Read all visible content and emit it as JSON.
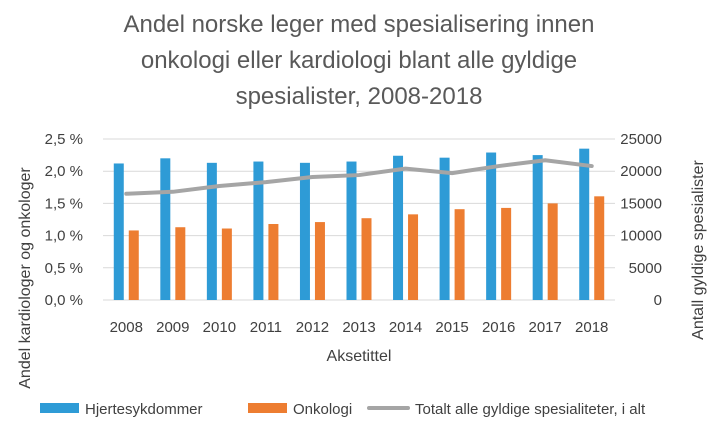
{
  "chart_data": {
    "type": "bar",
    "title": [
      "Andel norske leger med spesialisering innen",
      "onkologi eller kardiologi blant alle gyldige",
      "spesialister, 2008-2018"
    ],
    "categories": [
      "2008",
      "2009",
      "2010",
      "2011",
      "2012",
      "2013",
      "2014",
      "2015",
      "2016",
      "2017",
      "2018"
    ],
    "xlabel": "Aksetittel",
    "ylabel": "Andel kardiologer og onkologer",
    "ylabel_right": "Antall gyldige spesialister",
    "ylim": [
      0,
      0.025
    ],
    "ylim_right": [
      0,
      25000
    ],
    "yticks": [
      "0,0 %",
      "0,5 %",
      "1,0 %",
      "1,5 %",
      "2,0 %",
      "2,5 %"
    ],
    "yticks_right": [
      "0",
      "5000",
      "10000",
      "15000",
      "20000",
      "25000"
    ],
    "grid": true,
    "legend_position": "bottom",
    "series": [
      {
        "name": "Hjertesykdommer",
        "type": "bar",
        "axis": "left",
        "color": "#2E9BD6",
        "values": [
          0.0212,
          0.022,
          0.0213,
          0.0215,
          0.0213,
          0.0215,
          0.0224,
          0.0221,
          0.0229,
          0.0225,
          0.0235
        ]
      },
      {
        "name": "Onkologi",
        "type": "bar",
        "axis": "left",
        "color": "#ED7D31",
        "values": [
          0.0108,
          0.0113,
          0.0111,
          0.0118,
          0.0121,
          0.0127,
          0.0133,
          0.0141,
          0.0143,
          0.015,
          0.0161
        ]
      },
      {
        "name": "Totalt alle gyldige spesialiteter, i alt",
        "type": "line",
        "axis": "right",
        "color": "#A5A5A5",
        "values": [
          16500,
          16800,
          17700,
          18300,
          19100,
          19400,
          20400,
          19700,
          20800,
          21700,
          20800
        ]
      }
    ]
  }
}
